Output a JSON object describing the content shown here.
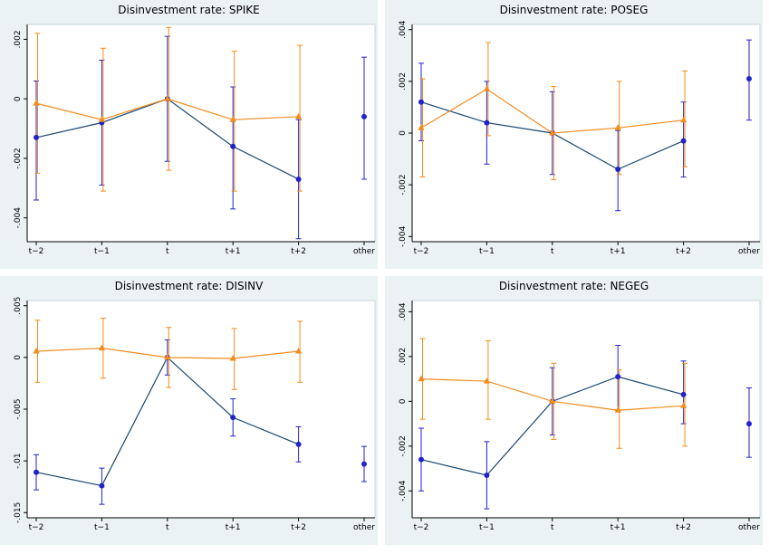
{
  "chart_data": [
    {
      "type": "line",
      "title": "Disinvestment rate: SPIKE",
      "categories": [
        "t−2",
        "t−1",
        "t",
        "t+1",
        "t+2",
        "other"
      ],
      "ylim": [
        -0.0048,
        0.0025
      ],
      "yticks": [
        {
          "value": 0.002,
          "label": ".002"
        },
        0,
        {
          "value": -0.002,
          "label": "-.002"
        },
        {
          "value": -0.004,
          "label": "-.004"
        }
      ],
      "series": [
        {
          "color": "#2222cc",
          "line_color": "#1a476f",
          "marker": "circle",
          "line": true,
          "values": [
            -0.0013,
            -0.0008,
            0,
            -0.0016,
            -0.0027,
            null
          ],
          "lower": [
            -0.0034,
            -0.0029,
            -0.0021,
            -0.0037,
            -0.0047,
            null
          ],
          "upper": [
            0.0006,
            0.0013,
            0.0021,
            0.0004,
            -0.0007,
            null
          ]
        },
        {
          "color": "#f28c1e",
          "line_color": "#f28c1e",
          "marker": "triangle",
          "line": true,
          "values": [
            -0.00015,
            -0.0007,
            0,
            -0.0007,
            -0.0006,
            null
          ],
          "lower": [
            -0.0025,
            -0.0031,
            -0.0024,
            -0.0031,
            -0.0031,
            null
          ],
          "upper": [
            0.0022,
            0.0017,
            0.0024,
            0.0016,
            0.0018,
            null
          ]
        },
        {
          "color": "#2222cc",
          "marker": "circle",
          "line": false,
          "values": [
            null,
            null,
            null,
            null,
            null,
            -0.0006
          ],
          "lower": [
            null,
            null,
            null,
            null,
            null,
            -0.0027
          ],
          "upper": [
            null,
            null,
            null,
            null,
            null,
            0.0014
          ]
        }
      ]
    },
    {
      "type": "line",
      "title": "Disinvestment rate: POSEG",
      "categories": [
        "t−2",
        "t−1",
        "t",
        "t+1",
        "t+2",
        "other"
      ],
      "ylim": [
        -0.0042,
        0.0042
      ],
      "yticks": [
        {
          "value": 0.004,
          "label": ".004"
        },
        {
          "value": 0.002,
          "label": ".002"
        },
        0,
        {
          "value": -0.002,
          "label": "-.002"
        },
        {
          "value": -0.004,
          "label": "-.004"
        }
      ],
      "series": [
        {
          "color": "#2222cc",
          "line_color": "#1a476f",
          "marker": "circle",
          "line": true,
          "values": [
            0.0012,
            0.0004,
            0,
            -0.0014,
            -0.0003,
            null
          ],
          "lower": [
            -0.0003,
            -0.0012,
            -0.0016,
            -0.003,
            -0.0017,
            null
          ],
          "upper": [
            0.0027,
            0.002,
            0.0016,
            0.0001,
            0.0012,
            null
          ]
        },
        {
          "color": "#f28c1e",
          "line_color": "#f28c1e",
          "marker": "triangle",
          "line": true,
          "values": [
            0.0002,
            0.0017,
            0,
            0.0002,
            0.0005,
            null
          ],
          "lower": [
            -0.0017,
            -0.0001,
            -0.0018,
            -0.0016,
            -0.0013,
            null
          ],
          "upper": [
            0.0021,
            0.0035,
            0.0018,
            0.002,
            0.0024,
            null
          ]
        },
        {
          "color": "#2222cc",
          "marker": "circle",
          "line": false,
          "values": [
            null,
            null,
            null,
            null,
            null,
            0.0021
          ],
          "lower": [
            null,
            null,
            null,
            null,
            null,
            0.0005
          ],
          "upper": [
            null,
            null,
            null,
            null,
            null,
            0.0036
          ]
        }
      ]
    },
    {
      "type": "line",
      "title": "Disinvestment rate: DISINV",
      "categories": [
        "t−2",
        "t−1",
        "t",
        "t+1",
        "t+2",
        "other"
      ],
      "ylim": [
        -0.0155,
        0.0055
      ],
      "yticks": [
        {
          "value": 0.005,
          "label": ".005"
        },
        0,
        {
          "value": -0.005,
          "label": "-.005"
        },
        {
          "value": -0.01,
          "label": "-.01"
        },
        {
          "value": -0.015,
          "label": "-.015"
        }
      ],
      "series": [
        {
          "color": "#2222cc",
          "line_color": "#1a476f",
          "marker": "circle",
          "line": true,
          "values": [
            -0.0111,
            -0.0124,
            0,
            -0.0058,
            -0.0084,
            null
          ],
          "lower": [
            -0.0128,
            -0.0142,
            -0.0017,
            -0.0076,
            -0.0101,
            null
          ],
          "upper": [
            -0.0094,
            -0.0107,
            0.0017,
            -0.004,
            -0.0067,
            null
          ]
        },
        {
          "color": "#f28c1e",
          "line_color": "#f28c1e",
          "marker": "triangle",
          "line": true,
          "values": [
            0.0006,
            0.0009,
            0,
            -0.0001,
            0.0006,
            null
          ],
          "lower": [
            -0.0024,
            -0.002,
            -0.0029,
            -0.0031,
            -0.0024,
            null
          ],
          "upper": [
            0.0036,
            0.0038,
            0.0029,
            0.0028,
            0.0035,
            null
          ]
        },
        {
          "color": "#2222cc",
          "marker": "circle",
          "line": false,
          "values": [
            null,
            null,
            null,
            null,
            null,
            -0.0103
          ],
          "lower": [
            null,
            null,
            null,
            null,
            null,
            -0.012
          ],
          "upper": [
            null,
            null,
            null,
            null,
            null,
            -0.0086
          ]
        }
      ]
    },
    {
      "type": "line",
      "title": "Disinvestment rate: NEGEG",
      "categories": [
        "t−2",
        "t−1",
        "t",
        "t+1",
        "t+2",
        "other"
      ],
      "ylim": [
        -0.0052,
        0.0045
      ],
      "yticks": [
        {
          "value": 0.004,
          "label": ".004"
        },
        {
          "value": 0.002,
          "label": ".002"
        },
        0,
        {
          "value": -0.002,
          "label": "-.002"
        },
        {
          "value": -0.004,
          "label": "-.004"
        }
      ],
      "series": [
        {
          "color": "#2222cc",
          "line_color": "#1a476f",
          "marker": "circle",
          "line": true,
          "values": [
            -0.0026,
            -0.0033,
            0,
            0.0011,
            0.0003,
            null
          ],
          "lower": [
            -0.004,
            -0.0048,
            -0.0015,
            -0.0004,
            -0.001,
            null
          ],
          "upper": [
            -0.0012,
            -0.0018,
            0.0015,
            0.0025,
            0.0018,
            null
          ]
        },
        {
          "color": "#f28c1e",
          "line_color": "#f28c1e",
          "marker": "triangle",
          "line": true,
          "values": [
            0.001,
            0.0009,
            0,
            -0.0004,
            -0.0002,
            null
          ],
          "lower": [
            -0.0008,
            -0.0008,
            -0.0017,
            -0.0021,
            -0.002,
            null
          ],
          "upper": [
            0.0028,
            0.0027,
            0.0017,
            0.0014,
            0.0017,
            null
          ]
        },
        {
          "color": "#2222cc",
          "marker": "circle",
          "line": false,
          "values": [
            null,
            null,
            null,
            null,
            null,
            -0.001
          ],
          "lower": [
            null,
            null,
            null,
            null,
            null,
            -0.0025
          ],
          "upper": [
            null,
            null,
            null,
            null,
            null,
            0.0006
          ]
        }
      ]
    }
  ]
}
